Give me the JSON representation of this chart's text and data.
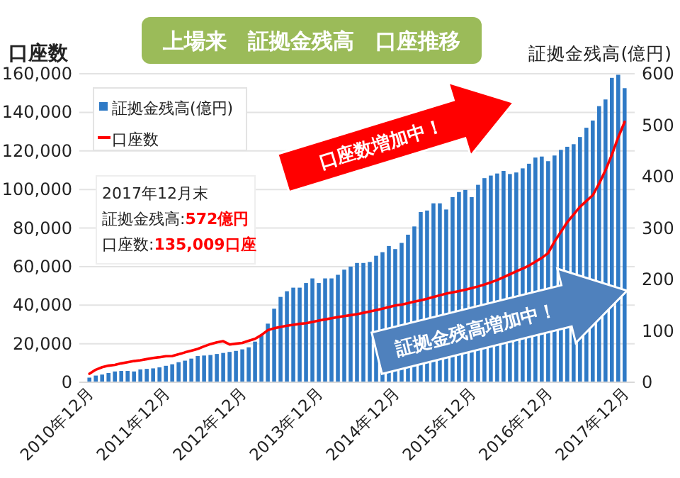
{
  "chart_data": {
    "type": "bar",
    "title": "上場来　証拠金残高　口座推移",
    "ylabel": "口座数",
    "y2label": "証拠金残高(億円)",
    "categories": [
      "2010年12月",
      null,
      null,
      null,
      null,
      null,
      null,
      null,
      null,
      null,
      null,
      null,
      "2011年12月",
      null,
      null,
      null,
      null,
      null,
      null,
      null,
      null,
      null,
      null,
      null,
      "2012年12月",
      null,
      null,
      null,
      null,
      null,
      null,
      null,
      null,
      null,
      null,
      null,
      "2013年12月",
      null,
      null,
      null,
      null,
      null,
      null,
      null,
      null,
      null,
      null,
      null,
      "2014年12月",
      null,
      null,
      null,
      null,
      null,
      null,
      null,
      null,
      null,
      null,
      null,
      "2015年12月",
      null,
      null,
      null,
      null,
      null,
      null,
      null,
      null,
      null,
      null,
      null,
      "2016年12月",
      null,
      null,
      null,
      null,
      null,
      null,
      null,
      null,
      null,
      null,
      null,
      "2017年12月"
    ],
    "series": [
      {
        "name": "証拠金残高(億円)",
        "axis": "y2",
        "color": "#2f7ac6",
        "values": [
          9,
          13,
          15,
          18,
          21,
          22,
          22,
          21,
          25,
          26,
          27,
          29,
          32,
          35,
          39,
          42,
          46,
          51,
          52,
          53,
          55,
          57,
          59,
          61,
          64,
          68,
          79,
          92,
          114,
          143,
          166,
          177,
          184,
          184,
          193,
          202,
          193,
          202,
          202,
          209,
          219,
          225,
          232,
          232,
          234,
          246,
          253,
          265,
          259,
          271,
          287,
          303,
          331,
          334,
          348,
          348,
          336,
          360,
          370,
          374,
          360,
          384,
          397,
          402,
          406,
          411,
          405,
          408,
          416,
          425,
          437,
          439,
          430,
          441,
          452,
          458,
          463,
          477,
          495,
          509,
          537,
          550,
          592,
          598,
          572
        ]
      },
      {
        "name": "口座数",
        "type": "line",
        "color": "#ff0000",
        "values": [
          4400,
          6500,
          7800,
          8600,
          9000,
          9800,
          10400,
          11000,
          11400,
          12000,
          12600,
          13000,
          13500,
          13600,
          14500,
          15500,
          16400,
          17300,
          18600,
          19800,
          20700,
          21300,
          19600,
          20000,
          20400,
          21500,
          22500,
          24500,
          27000,
          28000,
          28700,
          29300,
          29800,
          30300,
          30600,
          31300,
          32000,
          32600,
          33200,
          33800,
          34300,
          34800,
          35300,
          36000,
          36700,
          37400,
          38200,
          39000,
          39800,
          40300,
          41000,
          41800,
          42500,
          43300,
          44200,
          45100,
          46000,
          46600,
          47300,
          48000,
          48800,
          49700,
          50700,
          51800,
          53000,
          54500,
          56000,
          57500,
          59000,
          60500,
          62500,
          64500,
          67000,
          73000,
          78000,
          83000,
          87000,
          91000,
          94000,
          97000,
          103000,
          110000,
          118000,
          127000,
          135009
        ]
      }
    ],
    "ylim": [
      0,
      160000
    ],
    "yticks": [
      0,
      {
        "value": 20000,
        "label": "20,000"
      },
      {
        "value": 40000,
        "label": "40,000"
      },
      {
        "value": 60000,
        "label": "60,000"
      },
      {
        "value": 80000,
        "label": "80,000"
      },
      {
        "value": 100000,
        "label": "100,000"
      },
      {
        "value": 120000,
        "label": "120,000"
      },
      {
        "value": 140000,
        "label": "140,000"
      },
      {
        "value": 160000,
        "label": "160,000"
      }
    ],
    "y2lim": [
      0,
      600
    ],
    "y2ticks": [
      0,
      100,
      200,
      300,
      400,
      500,
      600
    ],
    "grid": "y",
    "legend": "top left",
    "annotations": [
      "2017年12月末",
      "証拠金残高:572億円",
      "口座数:135,009口座",
      "口座数増加中！",
      "証拠金残高増加中！"
    ]
  }
}
